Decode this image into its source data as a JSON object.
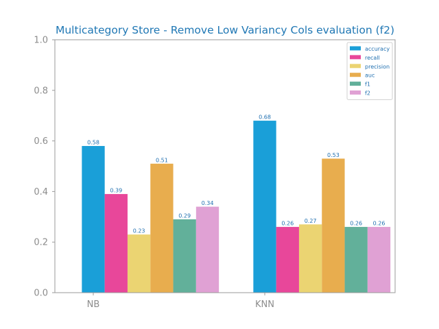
{
  "chart_data": {
    "type": "bar",
    "title": "Multicategory Store - Remove Low Variancy Cols evaluation (f2)",
    "xlabel": "",
    "ylabel": "",
    "categories": [
      "NB",
      "KNN"
    ],
    "ylim": [
      0.0,
      1.0
    ],
    "yticks": [
      "0.0",
      "0.2",
      "0.4",
      "0.6",
      "0.8",
      "1.0"
    ],
    "grid": false,
    "legend_position": "top-right",
    "series": [
      {
        "name": "accuracy",
        "color": "#1a9fd8",
        "values": [
          0.58,
          0.68
        ],
        "labels": [
          "0.58",
          "0.68"
        ]
      },
      {
        "name": "recall",
        "color": "#e8479a",
        "values": [
          0.39,
          0.26
        ],
        "labels": [
          "0.39",
          "0.26"
        ]
      },
      {
        "name": "precision",
        "color": "#ebd472",
        "values": [
          0.23,
          0.27
        ],
        "labels": [
          "0.23",
          "0.27"
        ]
      },
      {
        "name": "auc",
        "color": "#e8ad4e",
        "values": [
          0.51,
          0.53
        ],
        "labels": [
          "0.51",
          "0.53"
        ]
      },
      {
        "name": "f1",
        "color": "#62b09a",
        "values": [
          0.29,
          0.26
        ],
        "labels": [
          "0.29",
          "0.26"
        ]
      },
      {
        "name": "f2",
        "color": "#e0a1d4",
        "values": [
          0.34,
          0.26
        ],
        "labels": [
          "0.34",
          "0.26"
        ]
      }
    ]
  }
}
